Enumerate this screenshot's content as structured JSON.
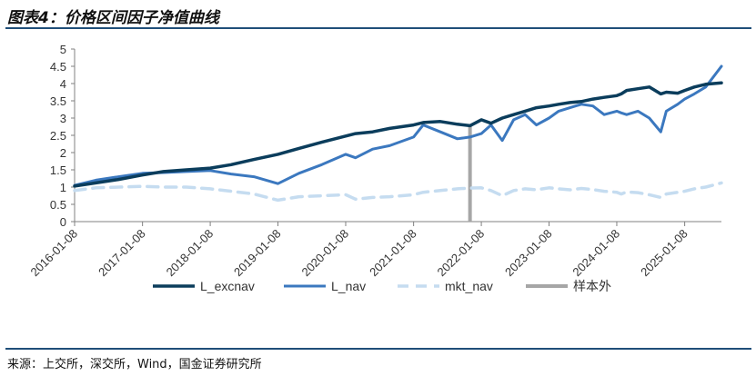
{
  "header": {
    "title": "图表4：价格区间因子净值曲线"
  },
  "footer": {
    "source": "来源：上交所，深交所，Wind，国金证券研究所"
  },
  "chart_data": {
    "type": "line",
    "title": "图表4：价格区间因子净值曲线",
    "xlabel": "",
    "ylabel": "",
    "x_range": [
      "2016-01-08",
      "2025-07-25"
    ],
    "xticks": [
      "2016-01-08",
      "2017-01-08",
      "2018-01-08",
      "2019-01-08",
      "2020-01-08",
      "2021-01-08",
      "2022-01-08",
      "2023-01-08",
      "2024-01-08",
      "2025-01-08"
    ],
    "ylim": [
      0,
      5
    ],
    "yticks": [
      "0",
      "0.5",
      "1",
      "1.5",
      "2",
      "2.5",
      "3",
      "3.5",
      "4",
      "4.5",
      "5"
    ],
    "grid": false,
    "legend_position": "bottom",
    "out_of_sample_start": "2021-11-08",
    "colors": {
      "L_excnav": "#0b3d5c",
      "L_nav": "#3b78bf",
      "mkt_nav": "#c5dcf0",
      "sample": "#a6a6a6"
    },
    "series": [
      {
        "name": "L_excnav",
        "style": "solid",
        "x": [
          "2016-01-08",
          "2016-05-01",
          "2016-09-01",
          "2017-01-08",
          "2017-05-01",
          "2017-09-01",
          "2018-01-08",
          "2018-05-01",
          "2018-09-01",
          "2019-01-08",
          "2019-05-01",
          "2019-09-01",
          "2020-01-08",
          "2020-03-01",
          "2020-06-01",
          "2020-09-01",
          "2021-01-08",
          "2021-03-01",
          "2021-06-01",
          "2021-09-01",
          "2021-11-08",
          "2022-01-08",
          "2022-03-01",
          "2022-05-01",
          "2022-07-01",
          "2022-09-01",
          "2022-11-01",
          "2023-01-08",
          "2023-03-01",
          "2023-05-01",
          "2023-07-01",
          "2023-09-01",
          "2023-11-01",
          "2024-01-08",
          "2024-02-01",
          "2024-03-01",
          "2024-05-01",
          "2024-07-01",
          "2024-09-01",
          "2024-10-01",
          "2024-12-01",
          "2025-01-08",
          "2025-03-01",
          "2025-05-01",
          "2025-07-25"
        ],
        "y": [
          1.03,
          1.12,
          1.22,
          1.35,
          1.45,
          1.5,
          1.55,
          1.65,
          1.8,
          1.95,
          2.12,
          2.3,
          2.48,
          2.55,
          2.6,
          2.7,
          2.8,
          2.87,
          2.9,
          2.82,
          2.78,
          2.95,
          2.85,
          3.0,
          3.1,
          3.2,
          3.3,
          3.35,
          3.4,
          3.45,
          3.48,
          3.55,
          3.6,
          3.65,
          3.7,
          3.8,
          3.85,
          3.9,
          3.7,
          3.75,
          3.72,
          3.8,
          3.9,
          3.98,
          4.02
        ]
      },
      {
        "name": "L_nav",
        "style": "solid",
        "x": [
          "2016-01-08",
          "2016-05-01",
          "2016-09-01",
          "2017-01-08",
          "2017-05-01",
          "2017-09-01",
          "2018-01-08",
          "2018-05-01",
          "2018-09-01",
          "2019-01-08",
          "2019-05-01",
          "2019-09-01",
          "2020-01-08",
          "2020-03-01",
          "2020-06-01",
          "2020-09-01",
          "2021-01-08",
          "2021-03-01",
          "2021-06-01",
          "2021-09-01",
          "2021-11-08",
          "2022-01-08",
          "2022-03-01",
          "2022-05-01",
          "2022-07-01",
          "2022-09-01",
          "2022-11-01",
          "2023-01-08",
          "2023-03-01",
          "2023-05-01",
          "2023-07-01",
          "2023-09-01",
          "2023-11-01",
          "2024-01-08",
          "2024-02-01",
          "2024-03-01",
          "2024-05-01",
          "2024-07-01",
          "2024-09-01",
          "2024-10-01",
          "2024-12-01",
          "2025-01-08",
          "2025-03-01",
          "2025-05-01",
          "2025-07-25"
        ],
        "y": [
          1.05,
          1.2,
          1.3,
          1.4,
          1.42,
          1.45,
          1.48,
          1.38,
          1.3,
          1.1,
          1.4,
          1.65,
          1.95,
          1.85,
          2.1,
          2.2,
          2.45,
          2.8,
          2.6,
          2.4,
          2.45,
          2.55,
          2.8,
          2.35,
          2.95,
          3.1,
          2.8,
          3.0,
          3.2,
          3.3,
          3.4,
          3.35,
          3.1,
          3.2,
          3.15,
          3.1,
          3.2,
          3.0,
          2.6,
          3.2,
          3.4,
          3.55,
          3.7,
          3.9,
          4.5
        ]
      },
      {
        "name": "mkt_nav",
        "style": "dashed",
        "x": [
          "2016-01-08",
          "2016-05-01",
          "2016-09-01",
          "2017-01-08",
          "2017-05-01",
          "2017-09-01",
          "2018-01-08",
          "2018-05-01",
          "2018-09-01",
          "2019-01-08",
          "2019-05-01",
          "2019-09-01",
          "2020-01-08",
          "2020-03-01",
          "2020-06-01",
          "2020-09-01",
          "2021-01-08",
          "2021-03-01",
          "2021-06-01",
          "2021-09-01",
          "2021-11-08",
          "2022-01-08",
          "2022-03-01",
          "2022-05-01",
          "2022-07-01",
          "2022-09-01",
          "2022-11-01",
          "2023-01-08",
          "2023-03-01",
          "2023-05-01",
          "2023-07-01",
          "2023-09-01",
          "2023-11-01",
          "2024-01-08",
          "2024-02-01",
          "2024-03-01",
          "2024-05-01",
          "2024-07-01",
          "2024-09-01",
          "2024-10-01",
          "2024-12-01",
          "2025-01-08",
          "2025-03-01",
          "2025-05-01",
          "2025-07-25"
        ],
        "y": [
          0.9,
          0.98,
          1.0,
          1.02,
          1.0,
          1.0,
          0.95,
          0.88,
          0.8,
          0.62,
          0.72,
          0.75,
          0.78,
          0.65,
          0.7,
          0.72,
          0.78,
          0.85,
          0.9,
          0.95,
          0.97,
          0.98,
          0.9,
          0.75,
          0.9,
          0.95,
          0.92,
          0.98,
          0.95,
          0.92,
          0.96,
          0.93,
          0.88,
          0.85,
          0.8,
          0.86,
          0.84,
          0.78,
          0.7,
          0.8,
          0.85,
          0.88,
          0.95,
          1.0,
          1.12
        ]
      }
    ]
  }
}
